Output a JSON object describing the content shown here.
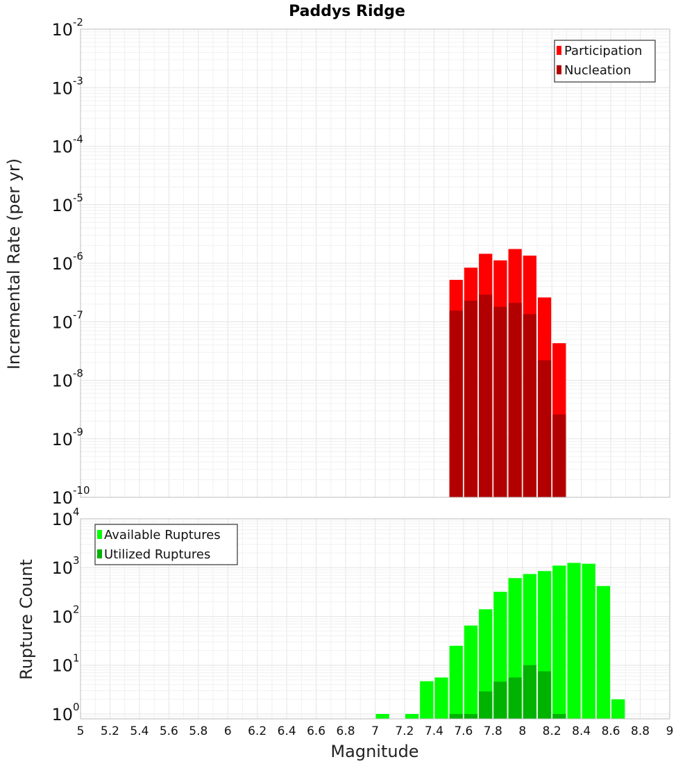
{
  "chart_data": [
    {
      "type": "bar",
      "title": "Paddys Ridge",
      "ylabel": "Incremental Rate (per yr)",
      "xlabel": "",
      "yscale": "log",
      "ylim_exp": [
        -10,
        -2
      ],
      "xlim": [
        5,
        9
      ],
      "bin_width": 0.1,
      "legend_position": "top-right",
      "series": [
        {
          "name": "Participation",
          "color": "#ff0000",
          "x": [
            7.55,
            7.65,
            7.75,
            7.85,
            7.95,
            8.05,
            8.15,
            8.25
          ],
          "values": [
            5.2e-07,
            8.4e-07,
            1.45e-06,
            1.12e-06,
            1.75e-06,
            1.35e-06,
            2.6e-07,
            4.3e-08
          ]
        },
        {
          "name": "Nucleation",
          "color": "#b20000",
          "x": [
            7.55,
            7.65,
            7.75,
            7.85,
            7.95,
            8.05,
            8.15,
            8.25
          ],
          "values": [
            1.55e-07,
            2.3e-07,
            2.9e-07,
            1.8e-07,
            2.1e-07,
            1.35e-07,
            2.2e-08,
            2.6e-09
          ]
        }
      ]
    },
    {
      "type": "bar",
      "ylabel": "Rupture Count",
      "xlabel": "Magnitude",
      "yscale": "log",
      "ylim_exp": [
        -0.1,
        4
      ],
      "xlim": [
        5,
        9
      ],
      "bin_width": 0.1,
      "legend_position": "top-left",
      "xticks": [
        "5",
        "5.2",
        "5.4",
        "5.6",
        "5.8",
        "6",
        "6.2",
        "6.4",
        "6.6",
        "6.8",
        "7",
        "7.2",
        "7.4",
        "7.6",
        "7.8",
        "8",
        "8.2",
        "8.4",
        "8.6",
        "8.8",
        "9"
      ],
      "series": [
        {
          "name": "Available Ruptures",
          "color": "#00ff00",
          "x": [
            7.05,
            7.25,
            7.35,
            7.45,
            7.55,
            7.65,
            7.75,
            7.85,
            7.95,
            8.05,
            8.15,
            8.25,
            8.35,
            8.45,
            8.55,
            8.65
          ],
          "values": [
            1,
            1,
            4.7,
            5.6,
            25,
            65,
            140,
            320,
            610,
            740,
            850,
            1100,
            1250,
            1200,
            420,
            2
          ]
        },
        {
          "name": "Utilized Ruptures",
          "color": "#00b300",
          "x": [
            7.55,
            7.65,
            7.75,
            7.85,
            7.95,
            8.05,
            8.15,
            8.25
          ],
          "values": [
            1,
            1,
            2.9,
            4.6,
            5.6,
            10,
            7.5,
            1
          ]
        }
      ]
    }
  ],
  "colors": {
    "participation": "#ff0000",
    "nucleation": "#b20000",
    "available": "#00ff00",
    "utilized": "#00b300"
  }
}
